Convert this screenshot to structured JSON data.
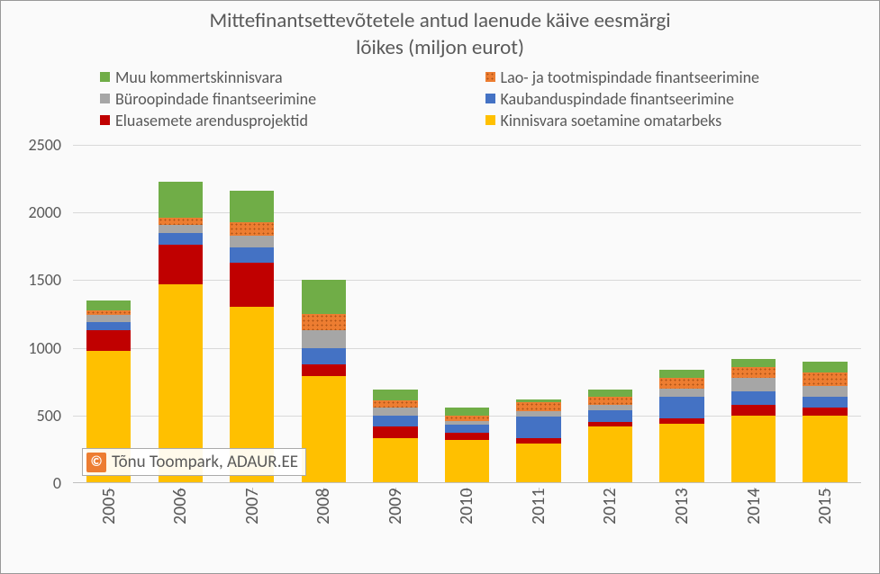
{
  "chart": {
    "type": "stacked-bar",
    "title_line1": "Mittefinantsettevõtetele antud laenude käive eesmärgi",
    "title_line2": "lõikes (miljon eurot)",
    "title_fontsize": 23,
    "title_color": "#595959",
    "background_color": "#fafafa",
    "border_color": "#999999",
    "legend_fontsize": 18,
    "series": [
      {
        "key": "kinnisvara",
        "label": "Kinnisvara soetamine omatarbeks",
        "color": "#ffc000",
        "dotted": false
      },
      {
        "key": "eluasemete",
        "label": "Eluasemete arendusprojektid",
        "color": "#c00000",
        "dotted": false
      },
      {
        "key": "kaubandus",
        "label": "Kaubanduspindade finantseerimine",
        "color": "#4472c4",
        "dotted": false
      },
      {
        "key": "buroo",
        "label": "Büroopindade finantseerimine",
        "color": "#a6a6a6",
        "dotted": false
      },
      {
        "key": "lao",
        "label": "Lao- ja tootmispindade  finantseerimine",
        "color": "#ed7d31",
        "dotted": true
      },
      {
        "key": "muu",
        "label": "Muu kommertskinnisvara",
        "color": "#70ad47",
        "dotted": false
      }
    ],
    "legend_order": [
      "muu",
      "lao",
      "buroo",
      "kaubandus",
      "eluasemete",
      "kinnisvara"
    ],
    "categories": [
      "2005",
      "2006",
      "2007",
      "2008",
      "2009",
      "2010",
      "2011",
      "2012",
      "2013",
      "2014",
      "2015"
    ],
    "data": {
      "kinnisvara": [
        980,
        1470,
        1300,
        790,
        330,
        320,
        290,
        420,
        440,
        500,
        500
      ],
      "eluasemete": [
        150,
        290,
        330,
        90,
        90,
        55,
        40,
        30,
        40,
        80,
        60
      ],
      "kaubandus": [
        60,
        90,
        110,
        120,
        80,
        55,
        160,
        90,
        160,
        100,
        80
      ],
      "buroo": [
        55,
        60,
        90,
        130,
        60,
        30,
        40,
        40,
        60,
        100,
        80
      ],
      "lao": [
        35,
        50,
        100,
        120,
        50,
        40,
        70,
        60,
        80,
        80,
        100
      ],
      "muu": [
        70,
        270,
        230,
        250,
        80,
        60,
        20,
        50,
        60,
        60,
        80
      ]
    },
    "y": {
      "min": 0,
      "max": 2500,
      "step": 500,
      "label_fontsize": 18,
      "label_color": "#595959"
    },
    "grid_color": "#d9d9d9",
    "axis_color": "#bfbfbf",
    "bar_width_ratio": 0.62,
    "x_label_fontsize": 20,
    "watermark": {
      "copyright": "©",
      "text": "Tõnu Toompark, ADAUR.EE",
      "badge_bg": "#ed7d31",
      "badge_fg": "#ffffff"
    }
  }
}
